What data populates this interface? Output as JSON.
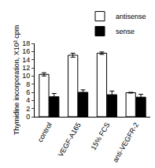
{
  "chart_data": {
    "type": "bar",
    "categories": [
      "control",
      "VEGF-A165",
      "15% FCS",
      "anti-VEGFR-2"
    ],
    "series": [
      {
        "name": "antisense",
        "color": "#ffffff",
        "values": [
          10.4,
          15.1,
          15.6,
          5.9
        ],
        "errors": [
          0.4,
          0.5,
          0.3,
          0.1
        ]
      },
      {
        "name": "sense",
        "color": "#000000",
        "values": [
          4.9,
          6.0,
          5.4,
          4.8
        ],
        "errors": [
          0.8,
          0.6,
          0.9,
          0.7
        ]
      }
    ],
    "y_label": "Thymidine incorporation, X10³ cpm",
    "ylim": [
      0,
      18
    ],
    "yticks": [
      0,
      2,
      4,
      6,
      8,
      10,
      12,
      14,
      16,
      18
    ],
    "grid": false,
    "legend": "top"
  }
}
